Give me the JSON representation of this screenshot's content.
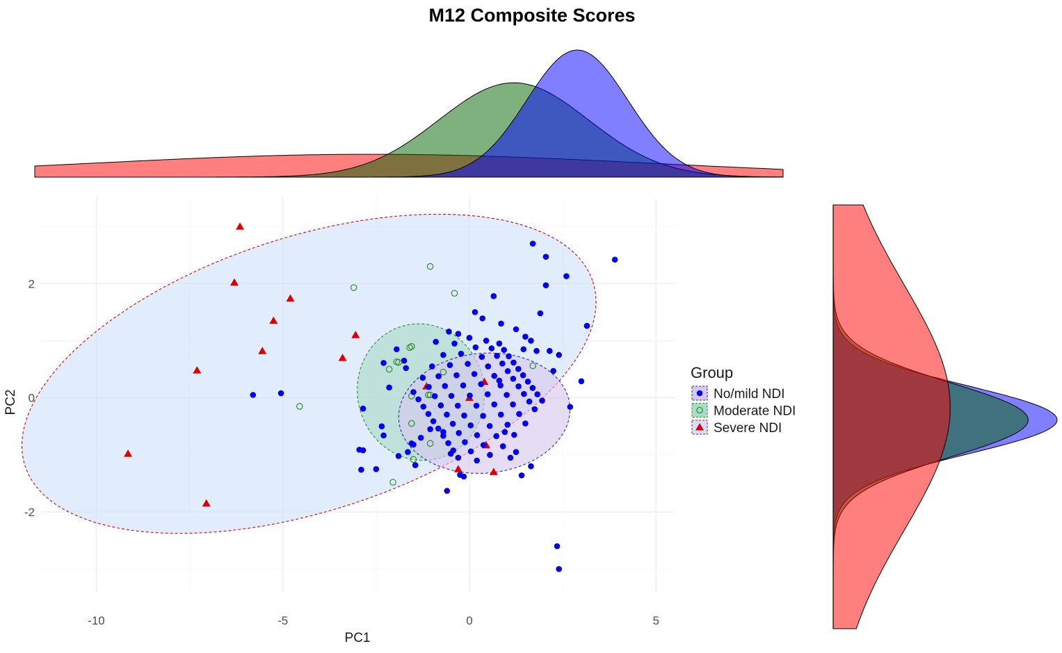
{
  "chart_data": {
    "type": "scatter",
    "title": "M12 Composite Scores",
    "xlabel": "PC1",
    "ylabel": "PC2",
    "xlim": [
      -11.5,
      5.5
    ],
    "ylim": [
      -3.4,
      3.5
    ],
    "x_ticks": [
      -10,
      -5,
      0,
      5
    ],
    "y_ticks": [
      -2,
      0,
      2
    ],
    "grid": true,
    "legend": {
      "title": "Group",
      "position": "right",
      "entries": [
        "No/mild NDI",
        "Moderate NDI",
        "Severe NDI"
      ]
    },
    "colors": {
      "no_mild": "#0000ee",
      "moderate": "#2e8b2e",
      "severe": "#dd0000",
      "ellipse_outer_fill": "#cfe0fb"
    },
    "series": [
      {
        "name": "No/mild NDI",
        "marker": "filled-circle",
        "x": [
          1.7,
          2.05,
          3.9,
          2.6,
          2.05,
          0.65,
          0.15,
          0.35,
          1.9,
          3.15,
          0.85,
          1.25,
          -0.3,
          -0.55,
          -0.9,
          1.5,
          1.65,
          1.8,
          2.15,
          2.4,
          2.25,
          3.0,
          2.7,
          -1.75,
          -1.95,
          -2.3,
          -2.15,
          -1.7,
          -2.85,
          -2.95,
          -2.35,
          -2.5,
          -2.9,
          -2.85,
          -2.3,
          -1.5,
          -1.9,
          -1.45,
          -0.6,
          -0.15,
          -0.5,
          -0.25,
          1.25,
          1.4,
          -5.8,
          -5.05,
          -1.65,
          -1.55,
          -1.3,
          -1.05,
          -0.7,
          2.35,
          2.4,
          1.65,
          1.1,
          0.95,
          0.8,
          1.45
        ],
        "y": [
          2.7,
          2.47,
          2.42,
          2.13,
          1.97,
          1.78,
          1.5,
          1.39,
          1.48,
          1.26,
          1.3,
          1.2,
          1.12,
          1.16,
          0.98,
          1.07,
          1.0,
          0.82,
          0.82,
          0.75,
          0.47,
          0.29,
          -0.16,
          0.65,
          0.85,
          0.61,
          0.18,
          0.52,
          -0.19,
          -0.91,
          -0.5,
          -1.25,
          -1.26,
          -0.92,
          -0.66,
          -0.82,
          -1.02,
          -1.18,
          -1.63,
          -1.38,
          -0.98,
          -1.35,
          -0.95,
          -1.36,
          0.05,
          0.08,
          -0.95,
          -0.8,
          -0.7,
          -0.55,
          -0.6,
          -2.6,
          -3.0,
          -1.2,
          -1.05,
          -0.6,
          0.3,
          0.85
        ]
      },
      {
        "name": "Moderate NDI",
        "marker": "open-circle",
        "x": [
          -1.05,
          -0.4,
          -3.1,
          -1.55,
          -1.6,
          -1.9,
          -1.95,
          -2.15,
          -4.55,
          -1.55,
          -1.1,
          -1.05,
          -0.7,
          -1.55,
          -1.05,
          -1.5,
          -2.05,
          1.7
        ],
        "y": [
          2.3,
          1.83,
          1.93,
          0.9,
          0.88,
          0.62,
          0.63,
          0.5,
          -0.15,
          0.03,
          0.05,
          0.05,
          0.45,
          -0.45,
          -0.8,
          -1.08,
          -1.48,
          0.56
        ]
      },
      {
        "name": "Severe NDI",
        "marker": "triangle",
        "x": [
          -6.15,
          -6.3,
          -4.8,
          -5.25,
          -5.55,
          -3.05,
          -3.4,
          -7.3,
          -9.15,
          -7.05,
          -1.15,
          0.0,
          0.4,
          0.45,
          -0.3,
          0.65
        ],
        "y": [
          3.0,
          2.02,
          1.74,
          1.35,
          0.82,
          1.1,
          0.7,
          0.48,
          -0.98,
          -1.85,
          0.2,
          0.0,
          0.28,
          -0.83,
          -1.25,
          -1.3
        ]
      }
    ],
    "ellipses": [
      {
        "group": "Severe NDI",
        "cx": -4.3,
        "cy": 0.42,
        "rx": 8.0,
        "ry": 2.4,
        "angle_deg": -18,
        "fill": "#cfe0fb",
        "stroke": "#dd0000"
      },
      {
        "group": "Moderate NDI",
        "cx": -1.3,
        "cy": 0.1,
        "rx": 1.7,
        "ry": 1.2,
        "angle_deg": -12,
        "fill": "#a8dcc6",
        "stroke": "#2e8b2e"
      },
      {
        "group": "No/mild NDI",
        "cx": 0.4,
        "cy": -0.27,
        "rx": 2.3,
        "ry": 1.05,
        "angle_deg": -5,
        "fill": "#d6c8ee",
        "stroke": "#2a2aa0"
      }
    ],
    "marginal_x": [
      {
        "group": "No/mild NDI",
        "mean": 3.0,
        "sd": 1.35,
        "weight": 1.0,
        "fill": "#0000ff"
      },
      {
        "group": "Moderate NDI",
        "mean": 1.3,
        "sd": 2.0,
        "weight": 1.1,
        "fill": "#006400"
      },
      {
        "group": "Severe NDI",
        "mean": -2.5,
        "sd": 7.5,
        "weight": 1.0,
        "fill": "#ff0000"
      }
    ],
    "marginal_y": [
      {
        "group": "No/mild NDI",
        "mean": 0.0,
        "sd": 0.55,
        "weight": 1.0,
        "fill": "#0000ff"
      },
      {
        "group": "Moderate NDI",
        "mean": 0.0,
        "sd": 0.6,
        "weight": 0.95,
        "fill": "#006400"
      },
      {
        "group": "Severe NDI",
        "mean": 0.2,
        "sd": 2.0,
        "weight": 1.0,
        "fill": "#ff0000"
      }
    ]
  }
}
